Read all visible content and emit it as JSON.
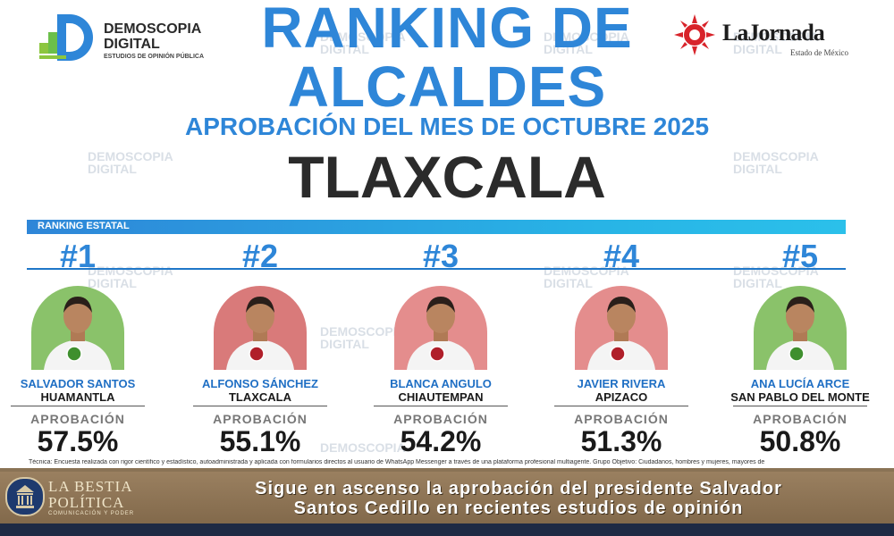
{
  "header": {
    "left_logo": {
      "name": "DEMOSCOPIA\nDIGITAL",
      "tagline": "ESTUDIOS DE OPINIÓN PÚBLICA"
    },
    "right_logo": {
      "name": "LaJornada",
      "edition": "Estado de México"
    },
    "title_line1": "RANKING DE",
    "title_line2": "ALCALDES",
    "subtitle": "APROBACIÓN DEL MES DE OCTUBRE 2025",
    "state": "TLAXCALA"
  },
  "section_label": "RANKING ESTATAL",
  "candidates": [
    {
      "rank": "#1",
      "name": "SALVADOR SANTOS",
      "city": "HUAMANTLA",
      "approval_label": "APROBACIÓN",
      "approval": "57.5%",
      "party_color": "#8ac26a",
      "badge_color": "#3f8f2e"
    },
    {
      "rank": "#2",
      "name": "ALFONSO SÁNCHEZ",
      "city": "TLAXCALA",
      "approval_label": "APROBACIÓN",
      "approval": "55.1%",
      "party_color": "#d97a7a",
      "badge_color": "#b01f2a"
    },
    {
      "rank": "#3",
      "name": "BLANCA ANGULO",
      "city": "CHIAUTEMPAN",
      "approval_label": "APROBACIÓN",
      "approval": "54.2%",
      "party_color": "#e48d8d",
      "badge_color": "#b01f2a"
    },
    {
      "rank": "#4",
      "name": "JAVIER RIVERA",
      "city": "APIZACO",
      "approval_label": "APROBACIÓN",
      "approval": "51.3%",
      "party_color": "#e48d8d",
      "badge_color": "#b01f2a"
    },
    {
      "rank": "#5",
      "name": "ANA LUCÍA ARCE",
      "city": "SAN PABLO DEL MONTE",
      "approval_label": "APROBACIÓN",
      "approval": "50.8%",
      "party_color": "#8ac26a",
      "badge_color": "#3f8f2e"
    }
  ],
  "technical_note": "Técnica: Encuesta realizada con rigor científico y estadístico, autoadministrada y aplicada con formularios directos al usuario de WhatsApp Messenger a través de una plataforma profesional multiagente. Grupo Objetivo: Ciudadanos, hombres y mujeres, mayores de",
  "footer": {
    "brand_name_1": "LA BESTIA",
    "brand_name_2": "POLÍTICA",
    "brand_tagline": "COMUNICACIÓN Y PODER",
    "headline_1": "Sigue en ascenso la aprobación del presidente Salvador",
    "headline_2": "Santos Cedillo en recientes estudios de opinión"
  },
  "colors": {
    "accent": "#2e86d8",
    "dark": "#2b2b2b",
    "footer": "#8a7355"
  }
}
